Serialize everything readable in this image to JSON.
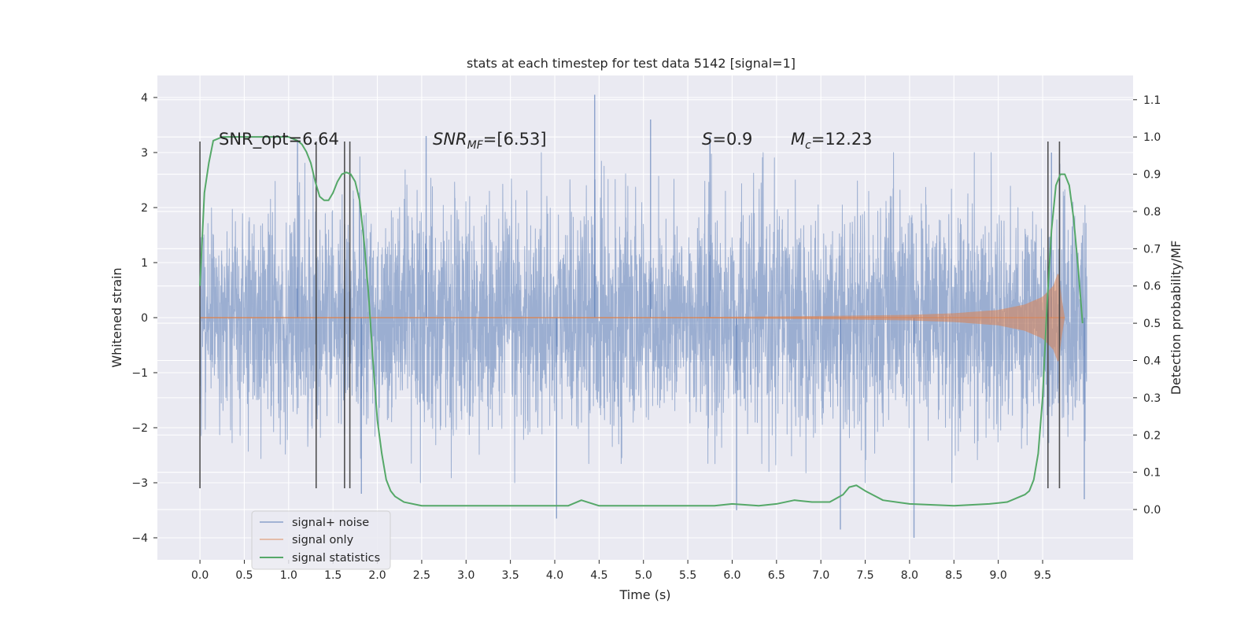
{
  "chart_data": {
    "type": "line",
    "title": "stats at each timestep for test data 5142 [signal=1]",
    "xlabel": "Time (s)",
    "ylabel": "Whitened strain",
    "y2label": "Detection probability/MF",
    "xlim": [
      -0.48,
      10.52
    ],
    "ylim": [
      -4.4,
      4.4
    ],
    "y2lim": [
      -0.135,
      1.165
    ],
    "x_ticks": [
      "0.0",
      "0.5",
      "1.0",
      "1.5",
      "2.0",
      "2.5",
      "3.0",
      "3.5",
      "4.0",
      "4.5",
      "5.0",
      "5.5",
      "6.0",
      "6.5",
      "7.0",
      "7.5",
      "8.0",
      "8.5",
      "9.0",
      "9.5"
    ],
    "y_ticks": [
      "4",
      "3",
      "2",
      "1",
      "0",
      "−1",
      "−2",
      "−3",
      "−4"
    ],
    "y2_ticks": [
      "1.1",
      "1.0",
      "0.9",
      "0.8",
      "0.7",
      "0.6",
      "0.5",
      "0.4",
      "0.3",
      "0.2",
      "0.1",
      "0.0"
    ],
    "grid": true,
    "legend_position": "bottom-left",
    "colors": {
      "noise": "#4c72b0",
      "signal": "#dd8452",
      "stats": "#55a868",
      "markers": "#404040",
      "background": "#eaeaf2",
      "grid": "#ffffff"
    },
    "annotations": {
      "snr_opt": "SNR_opt=6.64",
      "snr_mf_base": "SNR",
      "snr_mf_sub": "MF",
      "snr_mf_value": "=[6.53]",
      "s_base": "S",
      "s_value": "=0.9",
      "mc_base": "M",
      "mc_sub": "c",
      "mc_value": "=12.23"
    },
    "series": [
      {
        "name": "signal+ noise",
        "kind": "noise-band",
        "x_range": [
          0.0,
          10.0
        ],
        "sigma": 1.0,
        "peaks": [
          [
            4.45,
            4.05
          ],
          [
            5.08,
            3.6
          ],
          [
            2.55,
            3.3
          ],
          [
            1.1,
            3.2
          ],
          [
            5.75,
            3.3
          ],
          [
            9.6,
            3.0
          ]
        ],
        "troughs": [
          [
            4.02,
            -3.65
          ],
          [
            8.05,
            -4.0
          ],
          [
            7.22,
            -3.85
          ],
          [
            6.05,
            -3.5
          ],
          [
            1.82,
            -3.2
          ],
          [
            9.97,
            -3.3
          ]
        ]
      },
      {
        "name": "signal only",
        "kind": "chirp",
        "envelope": [
          [
            5.5,
            0.01
          ],
          [
            7.0,
            0.03
          ],
          [
            8.0,
            0.05
          ],
          [
            8.5,
            0.08
          ],
          [
            9.0,
            0.14
          ],
          [
            9.3,
            0.24
          ],
          [
            9.5,
            0.38
          ],
          [
            9.62,
            0.58
          ],
          [
            9.68,
            0.85
          ],
          [
            9.71,
            0.4
          ],
          [
            9.75,
            0.0
          ]
        ]
      },
      {
        "name": "signal statistics",
        "kind": "probability",
        "x": [
          0.0,
          0.05,
          0.1,
          0.15,
          0.25,
          0.4,
          0.6,
          0.8,
          1.0,
          1.1,
          1.15,
          1.2,
          1.25,
          1.3,
          1.35,
          1.4,
          1.45,
          1.5,
          1.55,
          1.6,
          1.65,
          1.7,
          1.75,
          1.8,
          1.85,
          1.9,
          1.95,
          2.0,
          2.05,
          2.1,
          2.15,
          2.2,
          2.3,
          2.5,
          3.0,
          3.5,
          4.0,
          4.15,
          4.3,
          4.5,
          4.8,
          5.2,
          5.5,
          5.8,
          6.0,
          6.3,
          6.5,
          6.7,
          6.9,
          7.1,
          7.25,
          7.32,
          7.4,
          7.5,
          7.7,
          8.0,
          8.5,
          8.9,
          9.1,
          9.2,
          9.25,
          9.3,
          9.35,
          9.4,
          9.45,
          9.5,
          9.55,
          9.6,
          9.65,
          9.7,
          9.75,
          9.8,
          9.85,
          9.9,
          9.95
        ],
        "y": [
          0.6,
          0.85,
          0.93,
          0.99,
          1.0,
          1.0,
          1.0,
          1.0,
          1.0,
          0.99,
          0.98,
          0.96,
          0.93,
          0.88,
          0.84,
          0.83,
          0.83,
          0.85,
          0.88,
          0.9,
          0.905,
          0.9,
          0.88,
          0.83,
          0.72,
          0.58,
          0.4,
          0.24,
          0.15,
          0.08,
          0.05,
          0.035,
          0.02,
          0.01,
          0.01,
          0.01,
          0.01,
          0.01,
          0.025,
          0.01,
          0.01,
          0.01,
          0.01,
          0.01,
          0.015,
          0.01,
          0.015,
          0.025,
          0.02,
          0.02,
          0.04,
          0.06,
          0.065,
          0.05,
          0.025,
          0.015,
          0.01,
          0.015,
          0.02,
          0.03,
          0.035,
          0.04,
          0.05,
          0.08,
          0.15,
          0.3,
          0.55,
          0.75,
          0.87,
          0.9,
          0.9,
          0.87,
          0.78,
          0.65,
          0.5
        ]
      }
    ],
    "vertical_markers": [
      {
        "x": 0.0,
        "y_range": [
          -3.1,
          3.2
        ]
      },
      {
        "x": 1.31,
        "y_range": [
          -3.1,
          3.2
        ]
      },
      {
        "x": 1.63,
        "y_range": [
          -3.1,
          3.2
        ]
      },
      {
        "x": 1.69,
        "y_range": [
          -3.1,
          3.2
        ]
      },
      {
        "x": 9.56,
        "y_range": [
          -3.1,
          3.2
        ]
      },
      {
        "x": 9.69,
        "y_range": [
          -3.1,
          3.2
        ]
      }
    ]
  }
}
